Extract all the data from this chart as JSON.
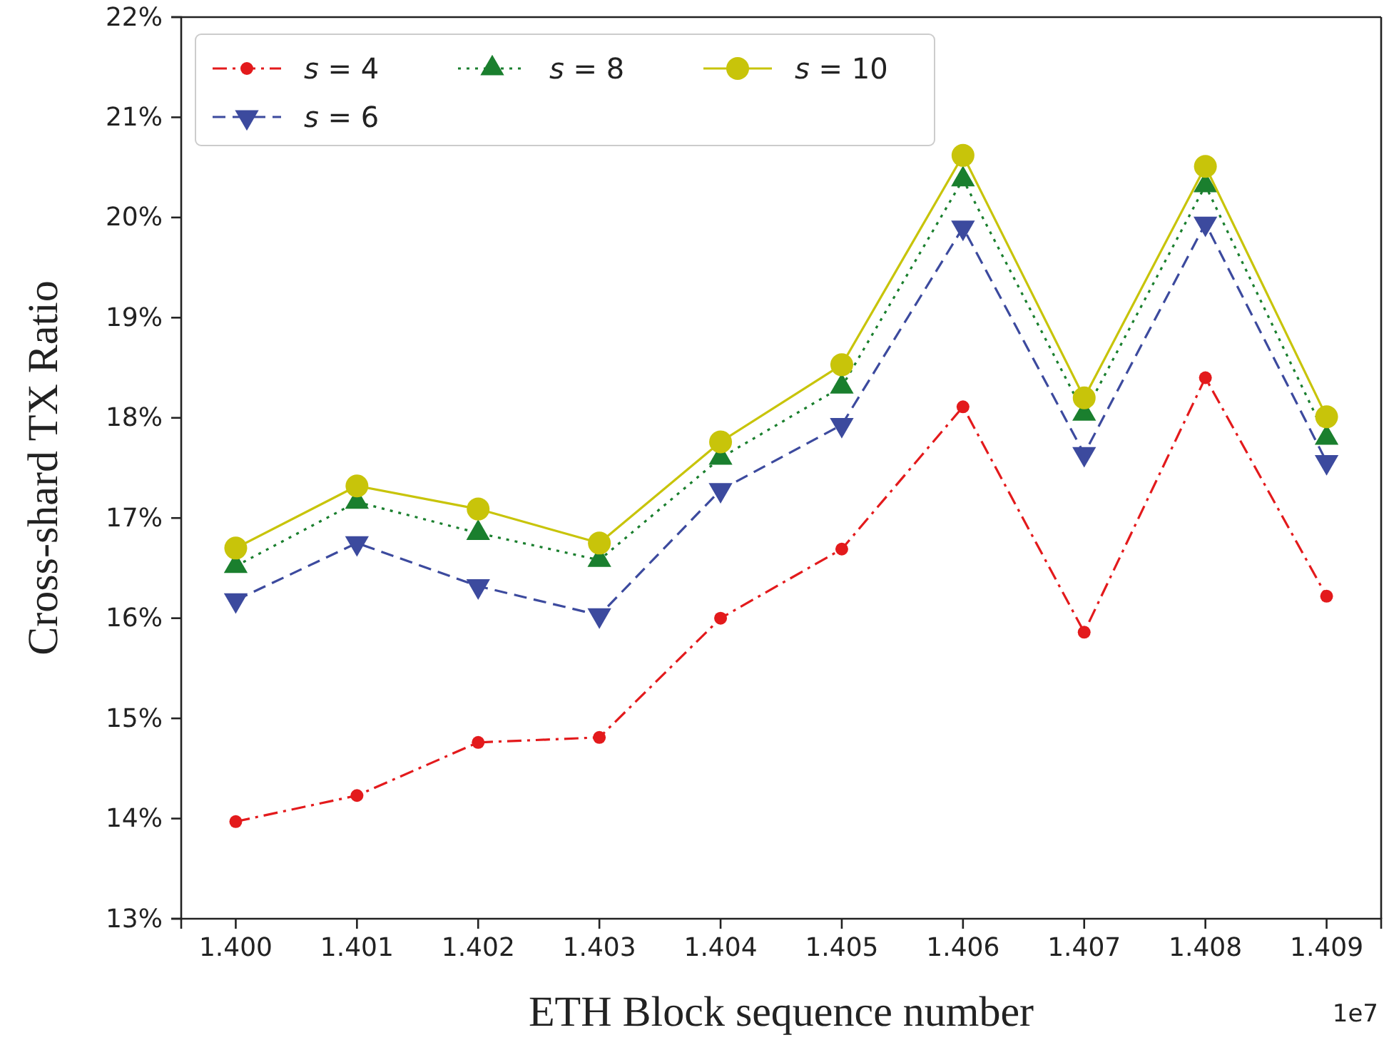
{
  "chart_data": {
    "type": "line",
    "xlabel": "ETH Block sequence number",
    "ylabel": "Cross-shard TX Ratio",
    "x": [
      1.4,
      1.401,
      1.402,
      1.403,
      1.404,
      1.405,
      1.406,
      1.407,
      1.408,
      1.409
    ],
    "xlim": [
      1.39955,
      1.40945
    ],
    "xticks": [
      {
        "value": 1.4,
        "label": "1.400"
      },
      1.401,
      1.402,
      1.403,
      1.404,
      1.405,
      1.406,
      1.407,
      1.408,
      1.409
    ],
    "ylim": [
      13,
      22
    ],
    "yticks": [
      {
        "value": 13,
        "label": "13%"
      },
      {
        "value": 14,
        "label": "14%"
      },
      {
        "value": 15,
        "label": "15%"
      },
      {
        "value": 16,
        "label": "16%"
      },
      {
        "value": 17,
        "label": "17%"
      },
      {
        "value": 18,
        "label": "18%"
      },
      {
        "value": 19,
        "label": "19%"
      },
      {
        "value": 20,
        "label": "20%"
      },
      {
        "value": 21,
        "label": "21%"
      },
      {
        "value": 22,
        "label": "22%"
      }
    ],
    "annotations": [
      "1e7"
    ],
    "legend": "top left",
    "series": [
      {
        "name": "s = 4",
        "color": "#e31a1c",
        "marker": "circle",
        "line_style": "dashdot",
        "values": [
          13.97,
          14.23,
          14.76,
          14.81,
          16.0,
          16.69,
          18.11,
          15.86,
          18.4,
          16.22
        ]
      },
      {
        "name": "s = 6",
        "color": "#3c4a9e",
        "marker": "triangle-down",
        "line_style": "dashed",
        "values": [
          16.18,
          16.75,
          16.32,
          16.03,
          17.28,
          17.93,
          19.9,
          17.64,
          19.94,
          17.56
        ]
      },
      {
        "name": "s = 8",
        "color": "#1a7f2e",
        "marker": "triangle",
        "line_style": "dotted",
        "values": [
          16.52,
          17.16,
          16.85,
          16.58,
          17.6,
          18.31,
          20.38,
          18.04,
          20.32,
          17.8
        ]
      },
      {
        "name": "s = 10",
        "color": "#c8c40a",
        "marker": "circle-large",
        "line_style": "solid",
        "values": [
          16.7,
          17.32,
          17.09,
          16.75,
          17.76,
          18.53,
          20.62,
          18.2,
          20.51,
          18.01
        ]
      }
    ]
  }
}
